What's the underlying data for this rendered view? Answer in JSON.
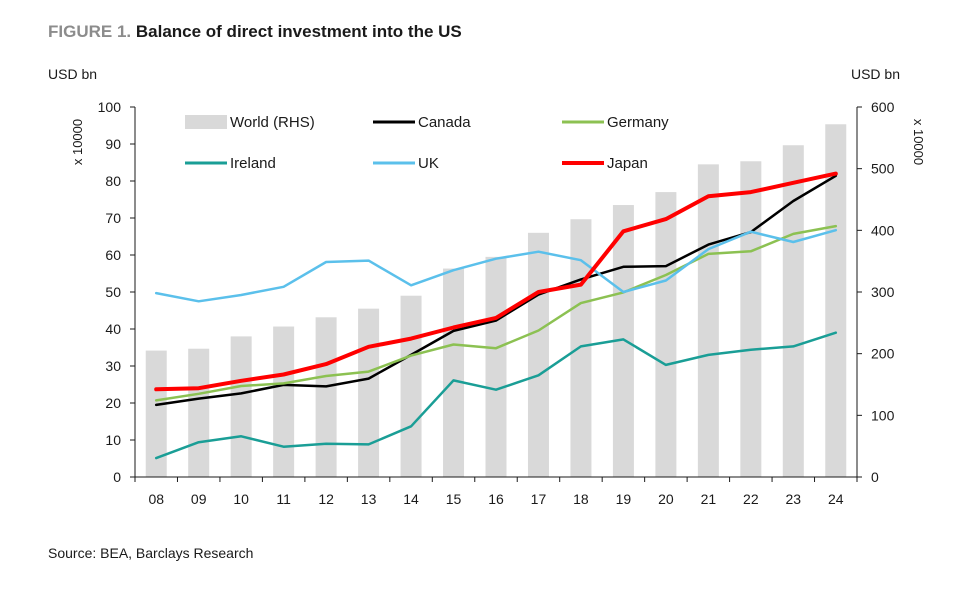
{
  "figure": {
    "label": "FIGURE 1.",
    "title": "Balance of direct investment into the US",
    "source": "Source: BEA, Barclays Research"
  },
  "chart_data": {
    "type": "bar+line",
    "title": "Balance of direct investment into the US",
    "categories": [
      "08",
      "09",
      "10",
      "11",
      "12",
      "13",
      "14",
      "15",
      "16",
      "17",
      "18",
      "19",
      "20",
      "21",
      "22",
      "23",
      "24"
    ],
    "left_axis": {
      "unit": "USD bn",
      "multiplier": "x 10000",
      "range": [
        0,
        100
      ],
      "ticks": [
        0,
        10,
        20,
        30,
        40,
        50,
        60,
        70,
        80,
        90,
        100
      ]
    },
    "right_axis": {
      "unit": "USD bn",
      "multiplier": "x 10000",
      "range": [
        0,
        600
      ],
      "ticks": [
        0,
        100,
        200,
        300,
        400,
        500,
        600
      ]
    },
    "bars": {
      "name": "World (RHS)",
      "axis": "right",
      "color": "#d9d9d9",
      "values": [
        205,
        208,
        228,
        244,
        259,
        273,
        294,
        338,
        357,
        396,
        418,
        441,
        462,
        507,
        512,
        538,
        572
      ]
    },
    "series": [
      {
        "name": "Canada",
        "color": "#000000",
        "values": [
          19.5,
          21.2,
          22.6,
          24.9,
          24.5,
          26.6,
          33.0,
          39.5,
          42.3,
          49.3,
          53.4,
          56.8,
          57.0,
          62.8,
          66.2,
          74.6,
          81.4
        ]
      },
      {
        "name": "Germany",
        "color": "#8cc152",
        "values": [
          20.7,
          22.5,
          24.6,
          25.3,
          27.3,
          28.5,
          32.8,
          35.8,
          34.8,
          39.6,
          47.0,
          49.9,
          54.6,
          60.3,
          61.0,
          65.7,
          67.8
        ]
      },
      {
        "name": "Ireland",
        "color": "#1a9e96",
        "values": [
          5.1,
          9.4,
          11.0,
          8.2,
          9.0,
          8.8,
          13.7,
          26.1,
          23.6,
          27.5,
          35.3,
          37.2,
          30.3,
          33.0,
          34.4,
          35.3,
          39.0
        ]
      },
      {
        "name": "UK",
        "color": "#5bc0eb",
        "values": [
          49.7,
          47.5,
          49.2,
          51.4,
          58.1,
          58.5,
          51.8,
          55.9,
          59.0,
          60.9,
          58.6,
          50.0,
          53.1,
          61.6,
          66.3,
          63.5,
          66.7
        ]
      },
      {
        "name": "Japan",
        "color": "#ff0000",
        "values": [
          23.7,
          24.0,
          26.0,
          27.7,
          30.5,
          35.2,
          37.4,
          40.4,
          43.0,
          50.0,
          52.0,
          66.4,
          69.7,
          75.9,
          77.0,
          79.5,
          82.0
        ]
      }
    ],
    "legend": [
      "World (RHS)",
      "Canada",
      "Germany",
      "Ireland",
      "UK",
      "Japan"
    ]
  }
}
